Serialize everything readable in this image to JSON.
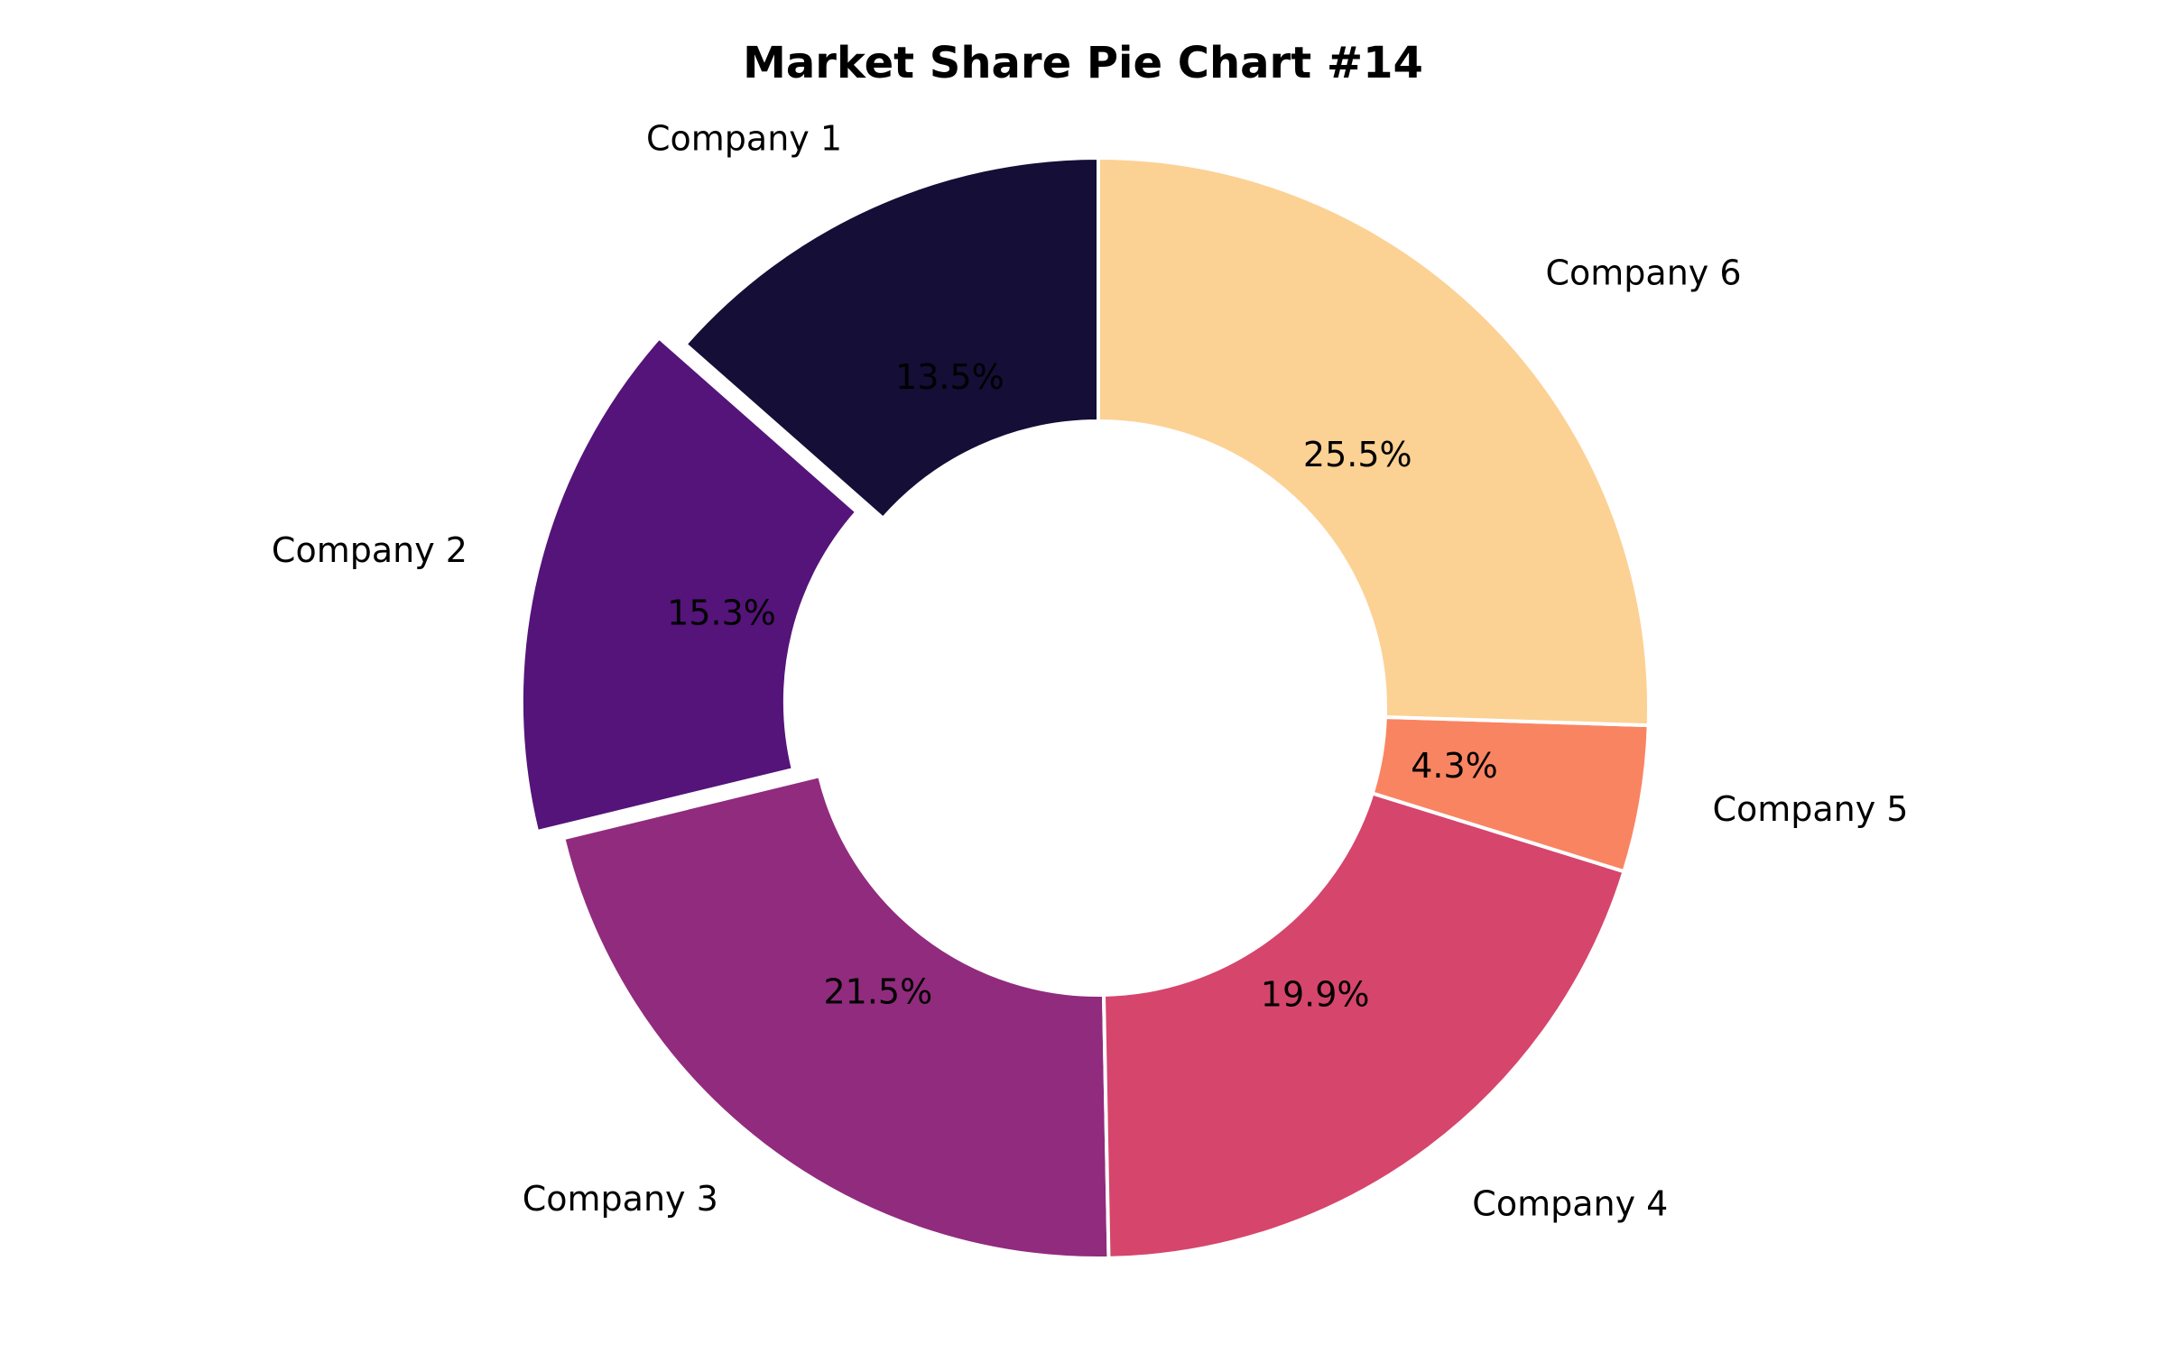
{
  "chart_data": {
    "type": "pie",
    "title": "Market Share Pie Chart #14",
    "donut": true,
    "start_angle_deg": 90,
    "direction": "counterclockwise",
    "slices": [
      {
        "label": "Company 1",
        "value": 13.5,
        "pct_label": "13.5%",
        "color": "#150e37",
        "exploded": false
      },
      {
        "label": "Company 2",
        "value": 15.3,
        "pct_label": "15.3%",
        "color": "#541479",
        "exploded": true
      },
      {
        "label": "Company 3",
        "value": 21.5,
        "pct_label": "21.5%",
        "color": "#912b7e",
        "exploded": false
      },
      {
        "label": "Company 4",
        "value": 19.9,
        "pct_label": "19.9%",
        "color": "#d6456c",
        "exploded": false
      },
      {
        "label": "Company 5",
        "value": 4.3,
        "pct_label": "4.3%",
        "color": "#f98462",
        "exploded": false
      },
      {
        "label": "Company 6",
        "value": 25.5,
        "pct_label": "25.5%",
        "color": "#fcd194",
        "exploded": false
      }
    ]
  }
}
